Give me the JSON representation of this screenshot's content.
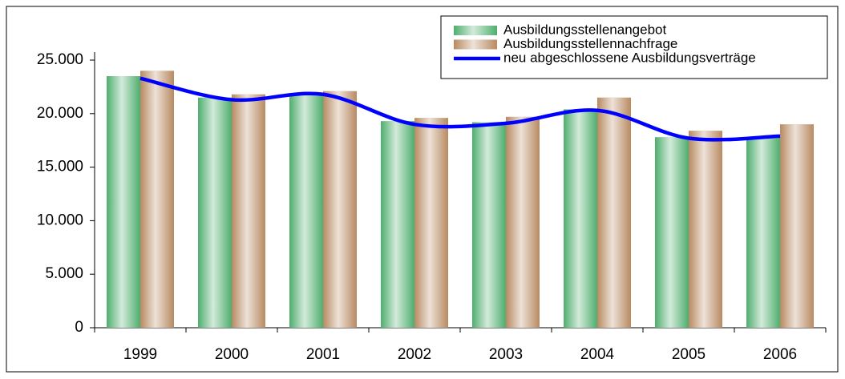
{
  "chart_data": {
    "type": "bar_line",
    "categories": [
      "1999",
      "2000",
      "2001",
      "2002",
      "2003",
      "2004",
      "2005",
      "2006"
    ],
    "series": [
      {
        "name": "Ausbildungsstellenangebot",
        "type": "bar",
        "color": "#4fae6e",
        "values": [
          23500,
          21500,
          21700,
          19300,
          19200,
          20400,
          17800,
          17800
        ]
      },
      {
        "name": "Ausbildungsstellennachfrage",
        "type": "bar",
        "color": "#b88a62",
        "values": [
          24000,
          21800,
          22100,
          19600,
          19700,
          21500,
          18400,
          19000
        ]
      },
      {
        "name": "neu abgeschlossene Ausbildungsverträge",
        "type": "line",
        "color": "#0000ff",
        "values": [
          23300,
          21300,
          21800,
          19000,
          19100,
          20300,
          17700,
          17900
        ]
      }
    ],
    "ylim": [
      0,
      25000
    ],
    "yticks": [
      0,
      {
        "value": 5000,
        "label": "5.000"
      },
      {
        "value": 10000,
        "label": "10.000"
      },
      {
        "value": 15000,
        "label": "15.000"
      },
      {
        "value": 20000,
        "label": "20.000"
      },
      {
        "value": 25000,
        "label": "25.000"
      }
    ],
    "legend": "top-right"
  }
}
